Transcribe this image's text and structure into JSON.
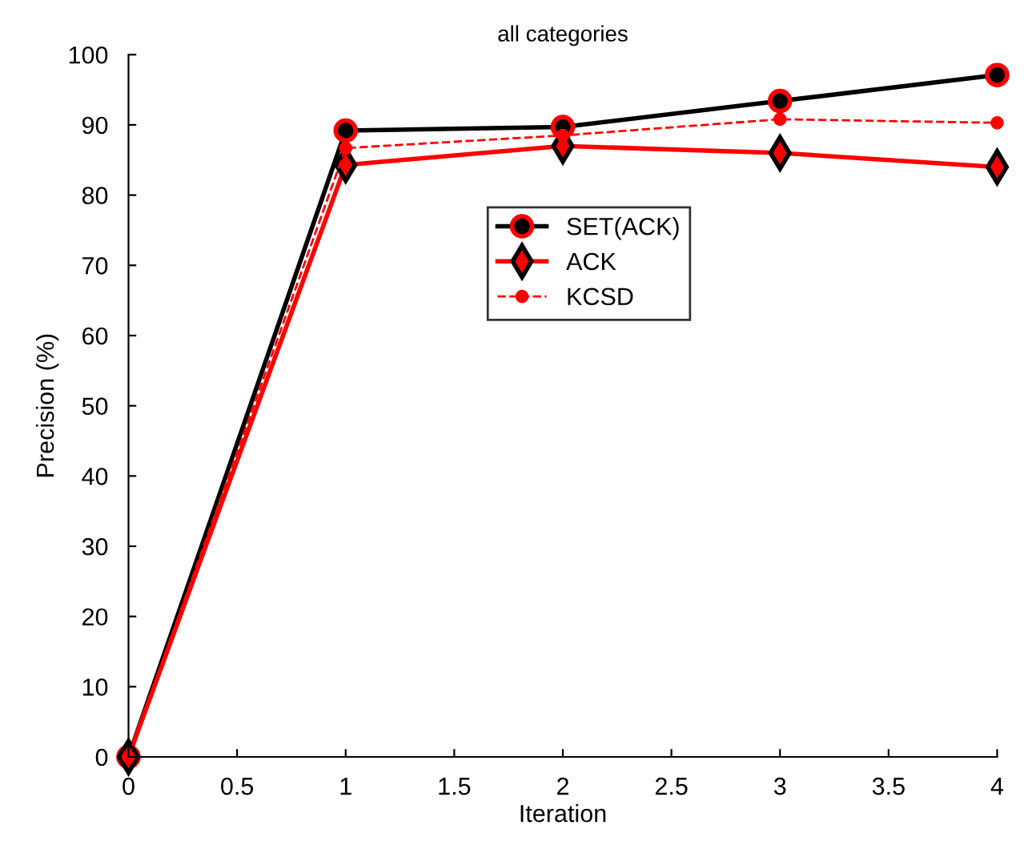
{
  "chart_data": {
    "type": "line",
    "title": "all categories",
    "xlabel": "Iteration",
    "ylabel": "Precision (%)",
    "x": [
      0,
      1,
      2,
      3,
      4
    ],
    "xlim": [
      0,
      4
    ],
    "xticks": [
      0,
      0.5,
      1,
      1.5,
      2,
      2.5,
      3,
      3.5,
      4
    ],
    "ylim": [
      0,
      100
    ],
    "yticks": [
      0,
      10,
      20,
      30,
      40,
      50,
      60,
      70,
      80,
      90,
      100
    ],
    "grid": false,
    "legend": "top",
    "series": [
      {
        "name": "SET(ACK)",
        "color": "#000000",
        "values": [
          0,
          89.2,
          89.7,
          93.4,
          97.1
        ],
        "marker": "circle",
        "line_style": "solid"
      },
      {
        "name": "ACK",
        "color": "#ff0000",
        "values": [
          0,
          84.3,
          87,
          86,
          84
        ],
        "marker": "diamond",
        "line_style": "solid"
      },
      {
        "name": "KCSD",
        "color": "#ff0000",
        "values": [
          0,
          86.7,
          88.5,
          90.8,
          90.3
        ],
        "marker": "circle",
        "line_style": "dashed"
      }
    ]
  }
}
